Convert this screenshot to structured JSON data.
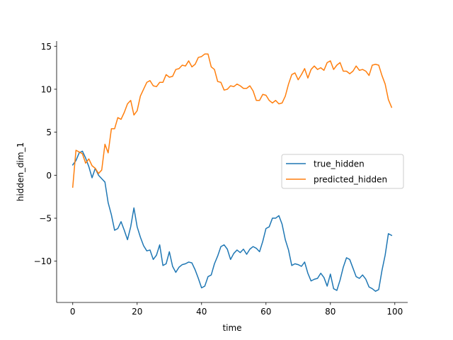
{
  "chart_data": {
    "type": "line",
    "xlabel": "time",
    "ylabel": "hidden_dim_1",
    "xlim": [
      -5,
      104
    ],
    "ylim": [
      -14.8,
      15.6
    ],
    "x_ticks": [
      0,
      20,
      40,
      60,
      80,
      100
    ],
    "y_ticks": [
      -10,
      -5,
      0,
      5,
      10,
      15
    ],
    "y_tick_labels": [
      "−10",
      "−5",
      "0",
      "5",
      "10",
      "15"
    ],
    "grid": false,
    "legend_position": "center-right",
    "series": [
      {
        "name": "true_hidden",
        "color": "#1f77b4",
        "values": [
          1.2,
          1.7,
          2.6,
          2.8,
          2.0,
          1.0,
          -0.3,
          0.8,
          0.0,
          -0.4,
          -0.8,
          -3.2,
          -4.6,
          -6.4,
          -6.2,
          -5.4,
          -6.4,
          -7.5,
          -6.0,
          -3.8,
          -6.0,
          -7.2,
          -8.2,
          -8.8,
          -8.7,
          -9.8,
          -9.3,
          -8.1,
          -10.5,
          -10.3,
          -8.9,
          -10.6,
          -11.3,
          -10.7,
          -10.4,
          -10.3,
          -10.1,
          -10.2,
          -11.0,
          -12.0,
          -13.1,
          -12.9,
          -11.8,
          -11.6,
          -10.3,
          -9.4,
          -8.3,
          -8.1,
          -8.6,
          -9.8,
          -9.1,
          -8.7,
          -9.0,
          -8.6,
          -9.2,
          -8.6,
          -8.3,
          -8.5,
          -8.9,
          -7.7,
          -6.2,
          -6.0,
          -5.0,
          -5.0,
          -4.7,
          -5.7,
          -7.5,
          -8.7,
          -10.5,
          -10.3,
          -10.4,
          -10.6,
          -10.1,
          -11.4,
          -12.3,
          -12.1,
          -12.0,
          -11.4,
          -11.9,
          -12.9,
          -11.5,
          -13.2,
          -13.4,
          -12.2,
          -10.7,
          -9.6,
          -9.8,
          -10.8,
          -11.8,
          -12.0,
          -11.6,
          -12.1,
          -13.0,
          -13.2,
          -13.5,
          -13.3,
          -11.1,
          -9.3,
          -6.8,
          -7.0
        ]
      },
      {
        "name": "predicted_hidden",
        "color": "#ff7f0e",
        "values": [
          -1.4,
          2.9,
          2.7,
          2.5,
          1.4,
          1.9,
          1.1,
          0.8,
          0.2,
          0.6,
          3.6,
          2.6,
          5.4,
          5.4,
          6.7,
          6.5,
          7.3,
          8.3,
          8.7,
          7.0,
          7.5,
          9.2,
          10.0,
          10.8,
          11.0,
          10.4,
          10.3,
          10.8,
          10.8,
          11.7,
          11.4,
          11.5,
          12.3,
          12.4,
          12.8,
          12.7,
          13.3,
          12.6,
          12.9,
          13.7,
          13.8,
          14.1,
          14.1,
          12.6,
          12.3,
          10.9,
          10.8,
          9.9,
          10.0,
          10.4,
          10.3,
          10.6,
          10.4,
          10.1,
          10.1,
          10.4,
          9.8,
          8.7,
          8.7,
          9.4,
          9.3,
          8.7,
          8.4,
          8.7,
          8.3,
          8.4,
          9.2,
          10.6,
          11.7,
          11.9,
          11.1,
          11.7,
          12.4,
          11.3,
          12.3,
          12.7,
          12.3,
          12.5,
          12.2,
          13.1,
          13.3,
          12.3,
          12.8,
          13.1,
          12.1,
          12.1,
          11.8,
          12.1,
          12.7,
          12.2,
          12.3,
          12.1,
          11.6,
          12.8,
          12.9,
          12.8,
          11.6,
          10.6,
          8.8,
          7.9
        ]
      }
    ]
  }
}
